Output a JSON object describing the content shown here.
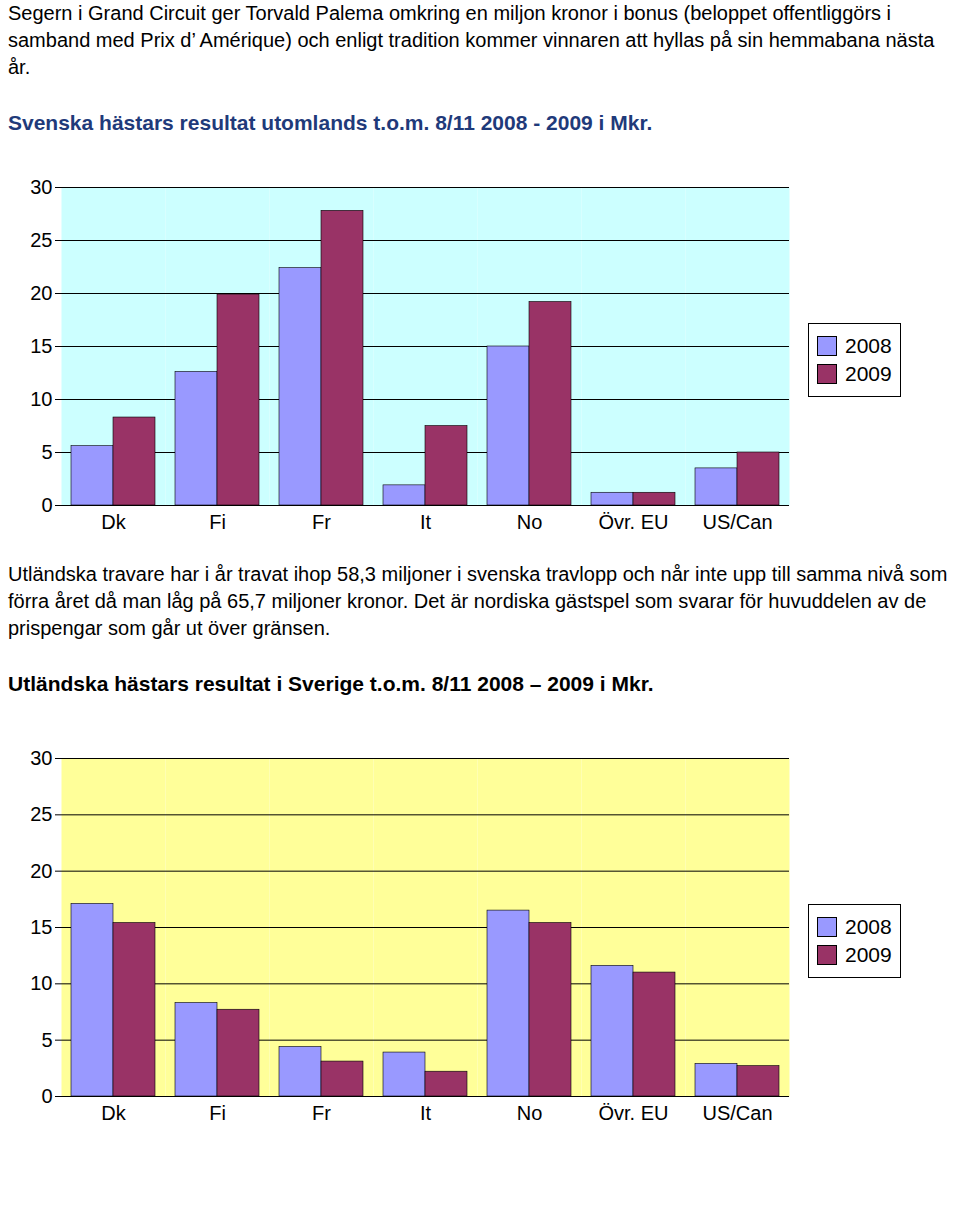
{
  "intro": "Segern i Grand Circuit ger Torvald Palema omkring en miljon kronor i bonus (beloppet offentliggörs i samband med Prix d’ Amérique) och enligt tradition kommer vinnaren att hyllas på sin hemmabana nästa år.",
  "between": "Utländska travare har i år travat ihop 58,3 miljoner i svenska travlopp och når inte upp till samma nivå som förra året då man låg på 65,7 miljoner kronor. Det är nordiska gästspel som svarar för huvuddelen av de prispengar som går ut över gränsen.",
  "chart_data": [
    {
      "type": "bar",
      "title": "Svenska hästars resultat utomlands t.o.m. 8/11 2008 - 2009 i Mkr.",
      "categories": [
        "Dk",
        "Fi",
        "Fr",
        "It",
        "No",
        "Övr. EU",
        "US/Can"
      ],
      "series": [
        {
          "name": "2008",
          "color": "#9999ff",
          "values": [
            5.6,
            12.6,
            22.4,
            1.9,
            15.0,
            1.2,
            3.5
          ]
        },
        {
          "name": "2009",
          "color": "#993366",
          "values": [
            8.3,
            19.9,
            27.8,
            7.5,
            19.2,
            1.2,
            5.0
          ]
        }
      ],
      "ylim": [
        0,
        30
      ],
      "yticks": [
        0,
        5,
        10,
        15,
        20,
        25,
        30
      ],
      "grid": true,
      "legend": "right"
    },
    {
      "type": "bar",
      "title": "Utländska hästars resultat i Sverige t.o.m. 8/11 2008 – 2009 i Mkr.",
      "categories": [
        "Dk",
        "Fi",
        "Fr",
        "It",
        "No",
        "Övr. EU",
        "US/Can"
      ],
      "series": [
        {
          "name": "2008",
          "color": "#9999ff",
          "values": [
            17.1,
            8.3,
            4.4,
            3.9,
            16.5,
            11.6,
            2.9
          ]
        },
        {
          "name": "2009",
          "color": "#993366",
          "values": [
            15.4,
            7.7,
            3.1,
            2.2,
            15.4,
            11.0,
            2.7
          ]
        }
      ],
      "ylim": [
        0,
        30
      ],
      "yticks": [
        0,
        5,
        10,
        15,
        20,
        25,
        30
      ],
      "grid": true,
      "legend": "right"
    }
  ]
}
